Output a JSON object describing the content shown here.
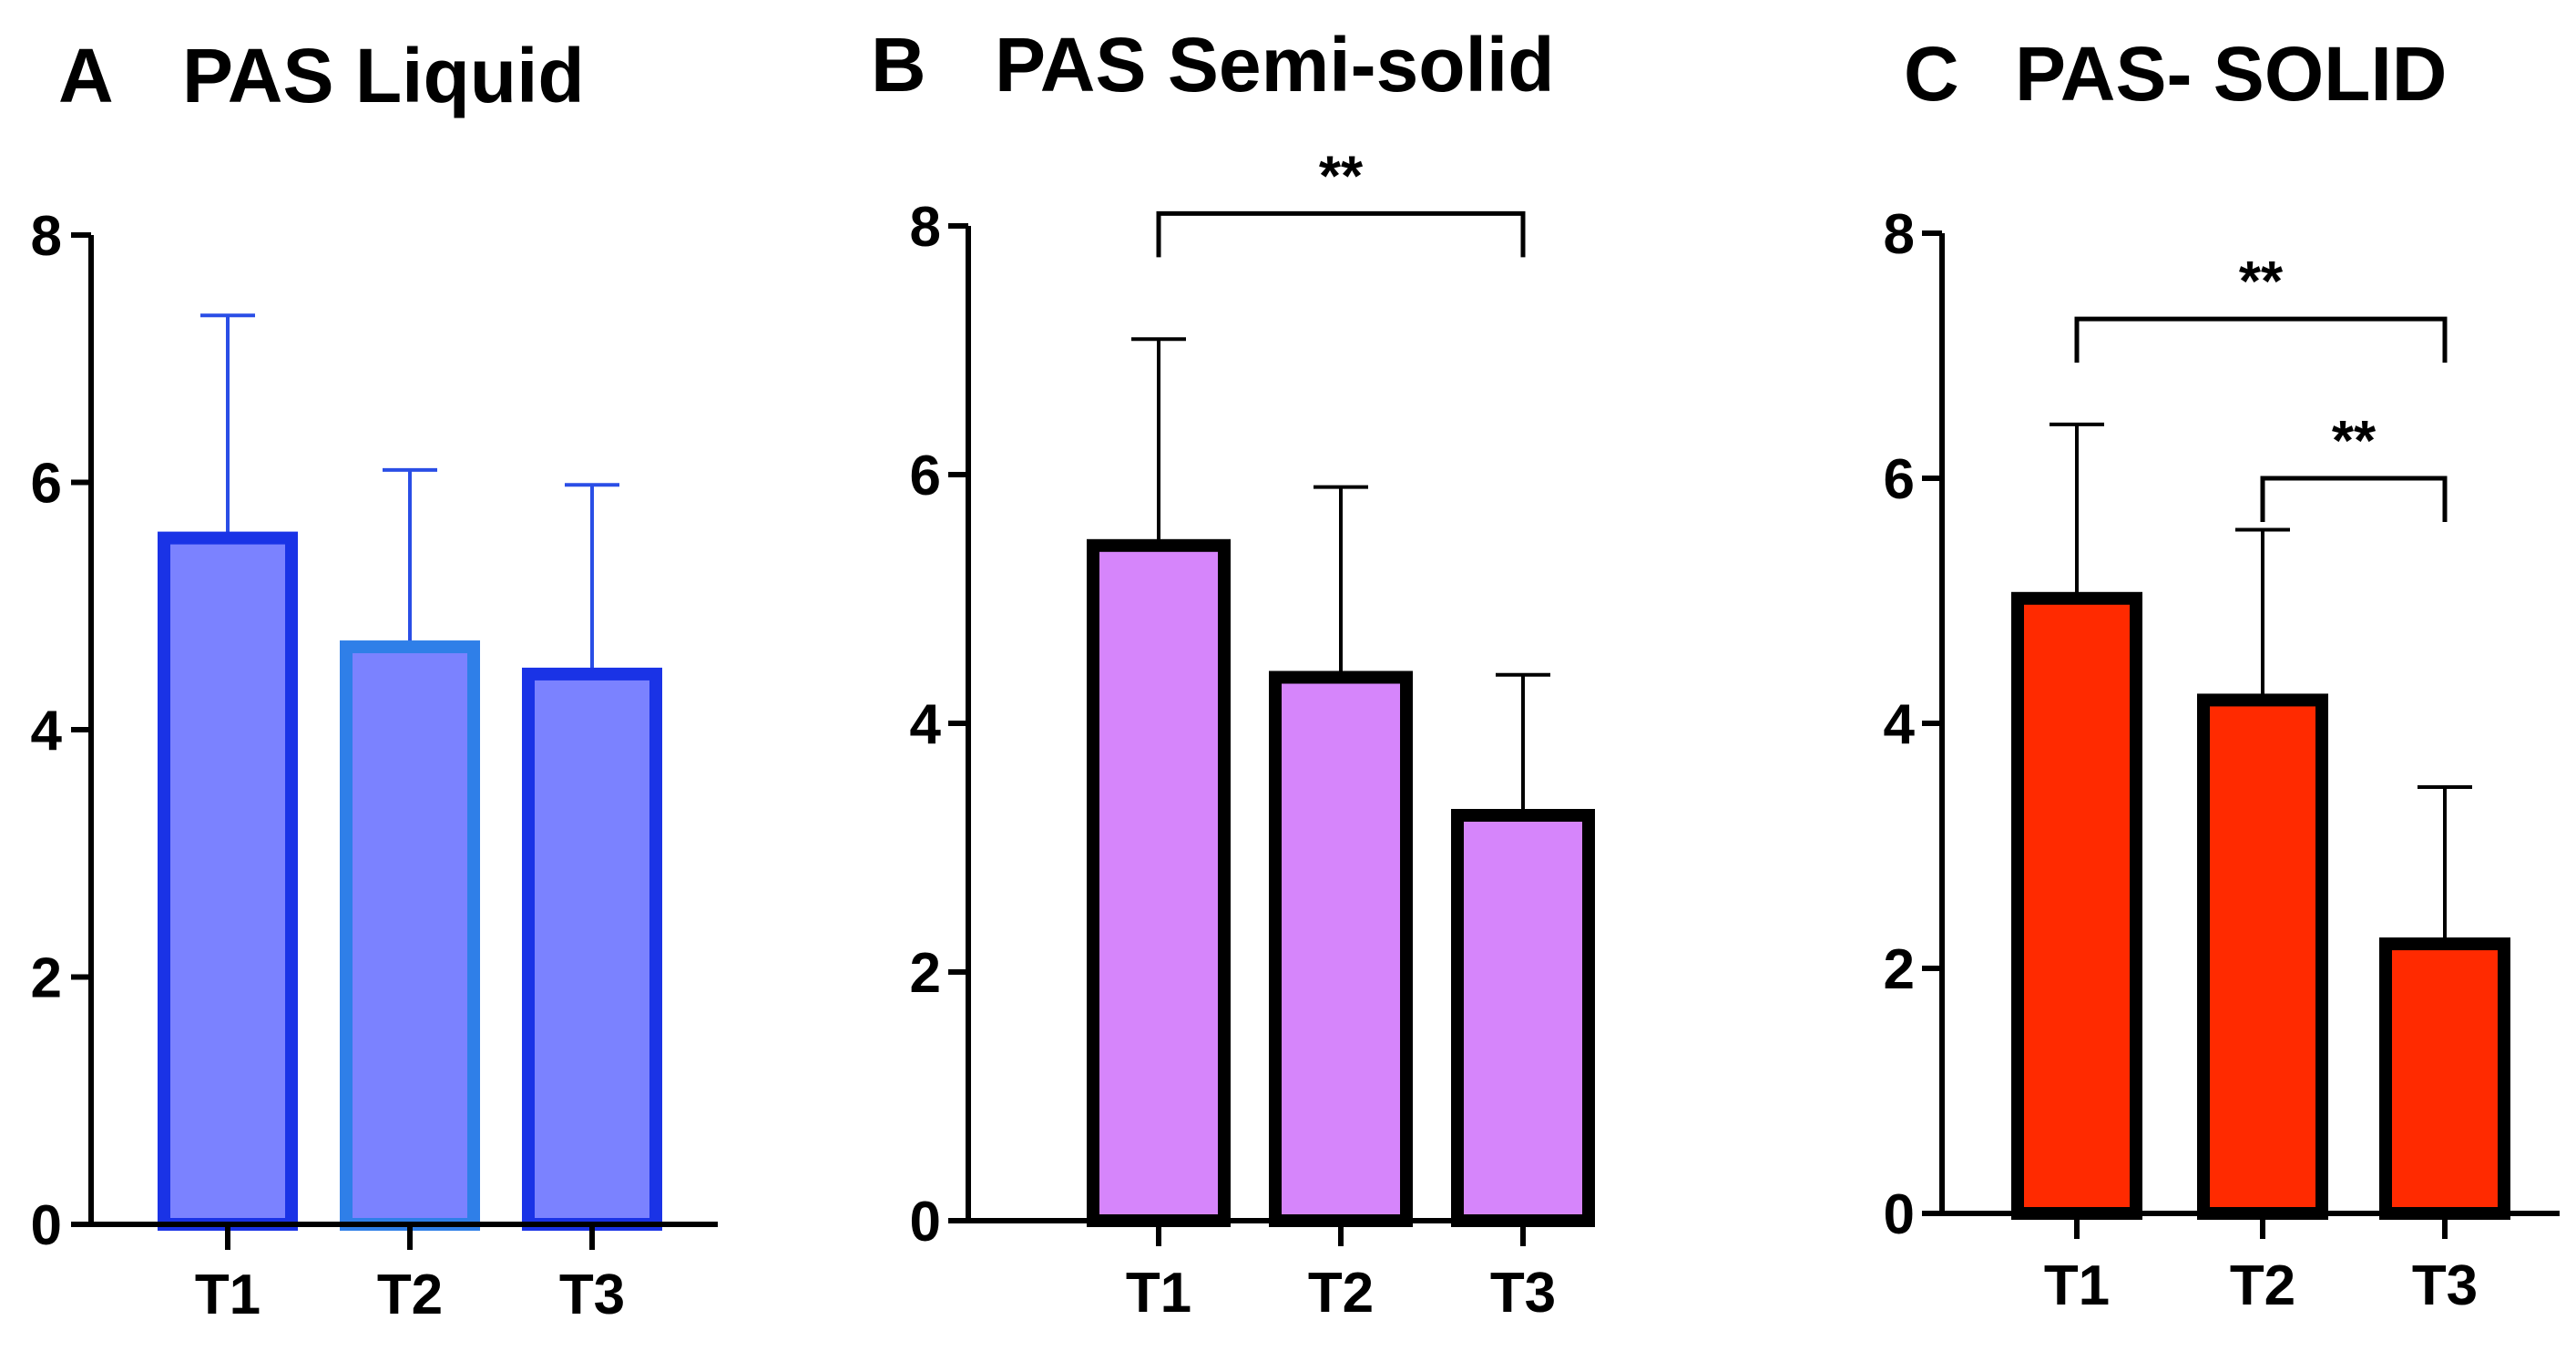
{
  "chart_data": [
    {
      "type": "bar",
      "panel": "A",
      "title": "PAS Liquid",
      "categories": [
        "T1",
        "T2",
        "T3"
      ],
      "values": [
        5.55,
        4.67,
        4.45
      ],
      "error": [
        1.8,
        1.43,
        1.53
      ],
      "ylim": [
        0,
        8
      ],
      "yticks": [
        "0",
        "2",
        "4",
        "6",
        "8"
      ],
      "xlabel": "",
      "ylabel": "",
      "fill_color": "#7b82ff",
      "edge_colors": [
        "#1a33e6",
        "#2f7fe8",
        "#1a33e6"
      ],
      "error_color": "#2a4ee6",
      "significance": []
    },
    {
      "type": "bar",
      "panel": "B",
      "title": "PAS Semi-solid",
      "categories": [
        "T1",
        "T2",
        "T3"
      ],
      "values": [
        5.43,
        4.37,
        3.26
      ],
      "error": [
        1.66,
        1.53,
        1.13
      ],
      "ylim": [
        0,
        8
      ],
      "yticks": [
        "0",
        "2",
        "4",
        "6",
        "8"
      ],
      "xlabel": "",
      "ylabel": "",
      "fill_color": "#d685fb",
      "edge_colors": [
        "#000000",
        "#000000",
        "#000000"
      ],
      "error_color": "#000000",
      "significance": [
        {
          "from": 0,
          "to": 2,
          "label": "**",
          "level": 8.1
        }
      ]
    },
    {
      "type": "bar",
      "panel": "C",
      "title": "PAS- SOLID",
      "categories": [
        "T1",
        "T2",
        "T3"
      ],
      "values": [
        5.02,
        4.19,
        2.2
      ],
      "error": [
        1.42,
        1.39,
        1.28
      ],
      "ylim": [
        0,
        8
      ],
      "yticks": [
        "0",
        "2",
        "4",
        "6",
        "8"
      ],
      "xlabel": "",
      "ylabel": "",
      "fill_color": "#ff2a00",
      "edge_colors": [
        "#000000",
        "#000000",
        "#000000"
      ],
      "error_color": "#000000",
      "significance": [
        {
          "from": 0,
          "to": 2,
          "label": "**",
          "level": 7.3
        },
        {
          "from": 1,
          "to": 2,
          "label": "**",
          "level": 6.0
        }
      ]
    }
  ]
}
